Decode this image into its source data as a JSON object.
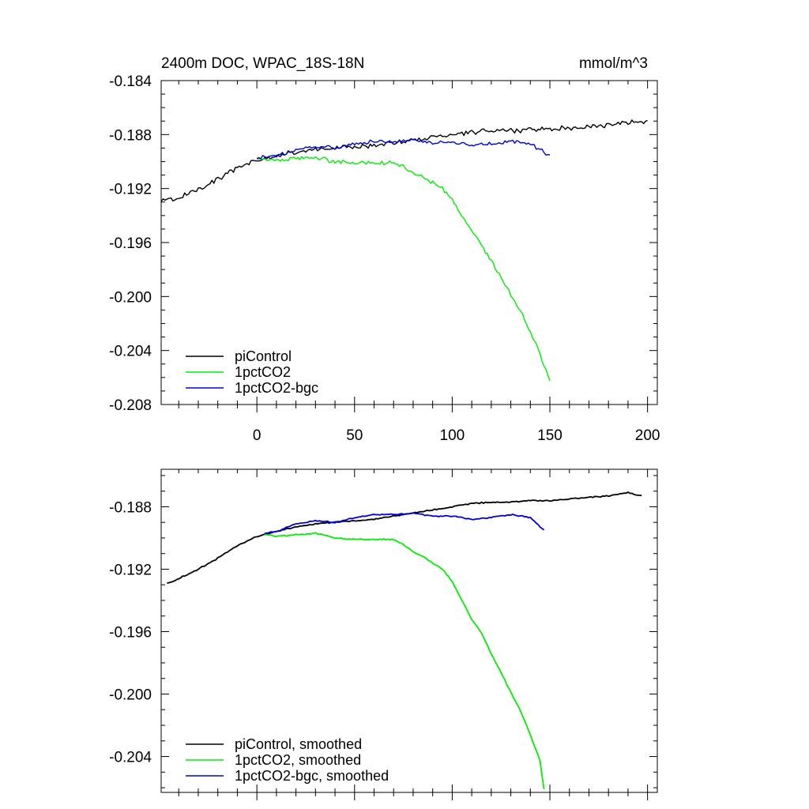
{
  "chart_data": [
    {
      "type": "line",
      "title_left": "2400m DOC, WPAC_18S-18N",
      "title_right": "mmol/m^3",
      "xlabel": "",
      "ylabel": "",
      "xlim": [
        -49,
        205
      ],
      "ylim": [
        -0.208,
        -0.184
      ],
      "x_ticks": [
        0,
        50,
        100,
        150,
        200
      ],
      "x_tick_labels": [
        "0",
        "50",
        "100",
        "150",
        "200"
      ],
      "y_ticks": [
        -0.184,
        -0.188,
        -0.192,
        -0.196,
        -0.2,
        -0.204,
        -0.208
      ],
      "y_tick_labels": [
        "-0.184",
        "-0.188",
        "-0.192",
        "-0.196",
        "-0.200",
        "-0.204",
        "-0.208"
      ],
      "legend_position": "bottom-left",
      "series": [
        {
          "name": "piControl",
          "color": "#000000",
          "x": [
            -49,
            -40,
            -30,
            -20,
            -10,
            0,
            10,
            20,
            30,
            40,
            50,
            60,
            70,
            80,
            90,
            100,
            110,
            120,
            130,
            140,
            150,
            160,
            170,
            180,
            190,
            200
          ],
          "y": [
            -0.1929,
            -0.1927,
            -0.192,
            -0.1913,
            -0.1905,
            -0.1899,
            -0.1896,
            -0.1893,
            -0.1891,
            -0.189,
            -0.1889,
            -0.1888,
            -0.1886,
            -0.1884,
            -0.1882,
            -0.188,
            -0.1878,
            -0.1877,
            -0.1877,
            -0.1876,
            -0.1876,
            -0.1875,
            -0.1874,
            -0.1873,
            -0.1871,
            -0.187
          ]
        },
        {
          "name": "1pctCO2",
          "color": "#00ee00",
          "x": [
            0,
            10,
            20,
            30,
            40,
            50,
            60,
            70,
            75,
            80,
            85,
            90,
            95,
            100,
            105,
            110,
            115,
            120,
            125,
            130,
            135,
            140,
            145,
            150
          ],
          "y": [
            -0.1898,
            -0.1899,
            -0.1898,
            -0.1897,
            -0.19,
            -0.1901,
            -0.1901,
            -0.1901,
            -0.1904,
            -0.1909,
            -0.1912,
            -0.1916,
            -0.192,
            -0.1928,
            -0.194,
            -0.1952,
            -0.1961,
            -0.1974,
            -0.1986,
            -0.1999,
            -0.2011,
            -0.2026,
            -0.2043,
            -0.2063
          ]
        },
        {
          "name": "1pctCO2-bgc",
          "color": "#0000dd",
          "x": [
            0,
            10,
            20,
            30,
            40,
            50,
            60,
            70,
            80,
            90,
            100,
            110,
            120,
            130,
            140,
            145,
            150
          ],
          "y": [
            -0.1897,
            -0.1896,
            -0.1891,
            -0.1889,
            -0.189,
            -0.1887,
            -0.1885,
            -0.1885,
            -0.1884,
            -0.1886,
            -0.1886,
            -0.1888,
            -0.1887,
            -0.1885,
            -0.1887,
            -0.1891,
            -0.1895
          ]
        }
      ],
      "legend": [
        "piControl",
        "1pctCO2",
        "1pctCO2-bgc"
      ]
    },
    {
      "type": "line",
      "xlabel": "",
      "ylabel": "",
      "xlim": [
        -49,
        205
      ],
      "ylim": [
        -0.2063,
        -0.1856
      ],
      "y_ticks": [
        -0.188,
        -0.192,
        -0.196,
        -0.2,
        -0.204
      ],
      "y_tick_labels": [
        "-0.188",
        "-0.192",
        "-0.196",
        "-0.200",
        "-0.204"
      ],
      "legend_position": "bottom-left",
      "series": [
        {
          "name": "piControl, smoothed",
          "color": "#000000",
          "x": [
            -46,
            -40,
            -30,
            -20,
            -10,
            0,
            10,
            20,
            30,
            40,
            50,
            60,
            70,
            80,
            90,
            100,
            110,
            120,
            130,
            140,
            150,
            160,
            170,
            180,
            190,
            197
          ],
          "y": [
            -0.1929,
            -0.1926,
            -0.192,
            -0.1913,
            -0.1905,
            -0.1899,
            -0.1896,
            -0.1893,
            -0.1891,
            -0.189,
            -0.1889,
            -0.1888,
            -0.1886,
            -0.1884,
            -0.1882,
            -0.188,
            -0.1878,
            -0.1877,
            -0.1877,
            -0.1876,
            -0.1876,
            -0.1875,
            -0.1874,
            -0.1873,
            -0.1871,
            -0.1873
          ]
        },
        {
          "name": "1pctCO2, smoothed",
          "color": "#00ee00",
          "x": [
            4,
            10,
            20,
            30,
            40,
            50,
            60,
            70,
            75,
            80,
            85,
            90,
            95,
            100,
            105,
            110,
            115,
            120,
            125,
            130,
            135,
            140,
            145,
            147
          ],
          "y": [
            -0.1898,
            -0.1899,
            -0.1898,
            -0.1897,
            -0.19,
            -0.1901,
            -0.1901,
            -0.1901,
            -0.1904,
            -0.1909,
            -0.1912,
            -0.1916,
            -0.192,
            -0.1928,
            -0.194,
            -0.1952,
            -0.1961,
            -0.1974,
            -0.1986,
            -0.1999,
            -0.2011,
            -0.2026,
            -0.2043,
            -0.2061
          ]
        },
        {
          "name": "1pctCO2-bgc, smoothed",
          "color": "#0000dd",
          "x": [
            4,
            10,
            20,
            30,
            40,
            50,
            60,
            70,
            80,
            90,
            100,
            110,
            120,
            130,
            140,
            147
          ],
          "y": [
            -0.1897,
            -0.1896,
            -0.1891,
            -0.1889,
            -0.189,
            -0.1887,
            -0.1885,
            -0.1885,
            -0.1884,
            -0.1886,
            -0.1886,
            -0.1888,
            -0.1887,
            -0.1885,
            -0.1887,
            -0.1895
          ]
        }
      ],
      "legend": [
        "piControl, smoothed",
        "1pctCO2, smoothed",
        "1pctCO2-bgc, smoothed"
      ]
    }
  ]
}
